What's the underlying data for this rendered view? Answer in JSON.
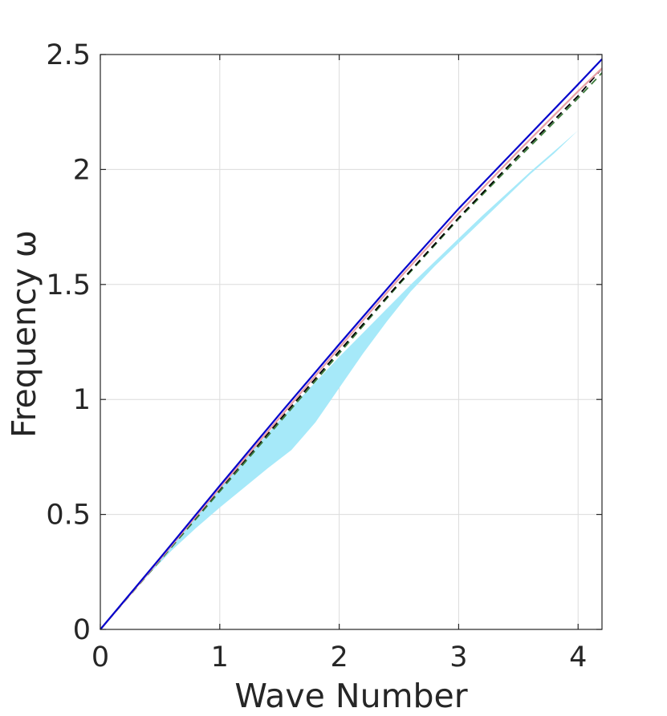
{
  "chart_data": {
    "type": "line",
    "xlabel": "Wave Number",
    "ylabel": "Frequency ω",
    "xlim": [
      0,
      4.2
    ],
    "ylim": [
      0,
      2.5
    ],
    "xticks": [
      "0",
      "1",
      "2",
      "3",
      "4"
    ],
    "yticks": [
      "0",
      "0.5",
      "1",
      "1.5",
      "2",
      "2.5"
    ],
    "grid": true,
    "band": {
      "color": "#a6e9f9",
      "x": [
        0,
        0.3,
        0.6,
        0.8,
        1.0,
        1.2,
        1.4,
        1.6,
        1.8,
        2.0,
        2.2,
        2.4,
        2.6,
        2.8,
        3.0,
        3.2,
        3.4,
        3.6,
        3.8,
        4.0,
        4.2
      ],
      "upper": [
        0,
        0.185,
        0.37,
        0.495,
        0.615,
        0.735,
        0.85,
        0.965,
        1.075,
        1.185,
        1.29,
        1.395,
        1.5,
        1.6,
        1.7,
        1.8,
        1.895,
        1.99,
        2.08,
        2.17,
        2.25
      ],
      "lower": [
        0,
        0.18,
        0.345,
        0.44,
        0.53,
        0.615,
        0.7,
        0.78,
        0.9,
        1.05,
        1.2,
        1.34,
        1.47,
        1.58,
        1.68,
        1.78,
        1.88,
        1.98,
        2.07,
        2.17,
        2.25
      ]
    },
    "series": [
      {
        "color": "#0000cc",
        "style": "solid",
        "x": [
          0,
          0.5,
          1.0,
          1.5,
          2.0,
          2.5,
          3.0,
          3.5,
          4.0,
          4.2
        ],
        "y": [
          0,
          0.31,
          0.625,
          0.935,
          1.24,
          1.54,
          1.83,
          2.1,
          2.37,
          2.48
        ]
      },
      {
        "color": "#e8a0a8",
        "style": "solid",
        "x": [
          0,
          0.5,
          1.0,
          1.5,
          2.0,
          2.5,
          3.0,
          3.5,
          4.0,
          4.2
        ],
        "y": [
          0,
          0.305,
          0.615,
          0.92,
          1.225,
          1.525,
          1.81,
          2.08,
          2.34,
          2.44
        ]
      },
      {
        "color": "#000000",
        "style": "dashed",
        "x": [
          0,
          0.5,
          1.0,
          1.5,
          2.0,
          2.5,
          3.0,
          3.5,
          4.0,
          4.2
        ],
        "y": [
          0,
          0.305,
          0.61,
          0.91,
          1.21,
          1.505,
          1.79,
          2.06,
          2.32,
          2.44
        ]
      },
      {
        "color": "#3a7a3a",
        "style": "dashed",
        "x": [
          0,
          0.5,
          1.0,
          1.5,
          2.0,
          2.5,
          3.0,
          3.5,
          4.0,
          4.2
        ],
        "y": [
          0,
          0.3,
          0.6,
          0.9,
          1.2,
          1.5,
          1.785,
          2.05,
          2.31,
          2.42
        ]
      }
    ]
  }
}
